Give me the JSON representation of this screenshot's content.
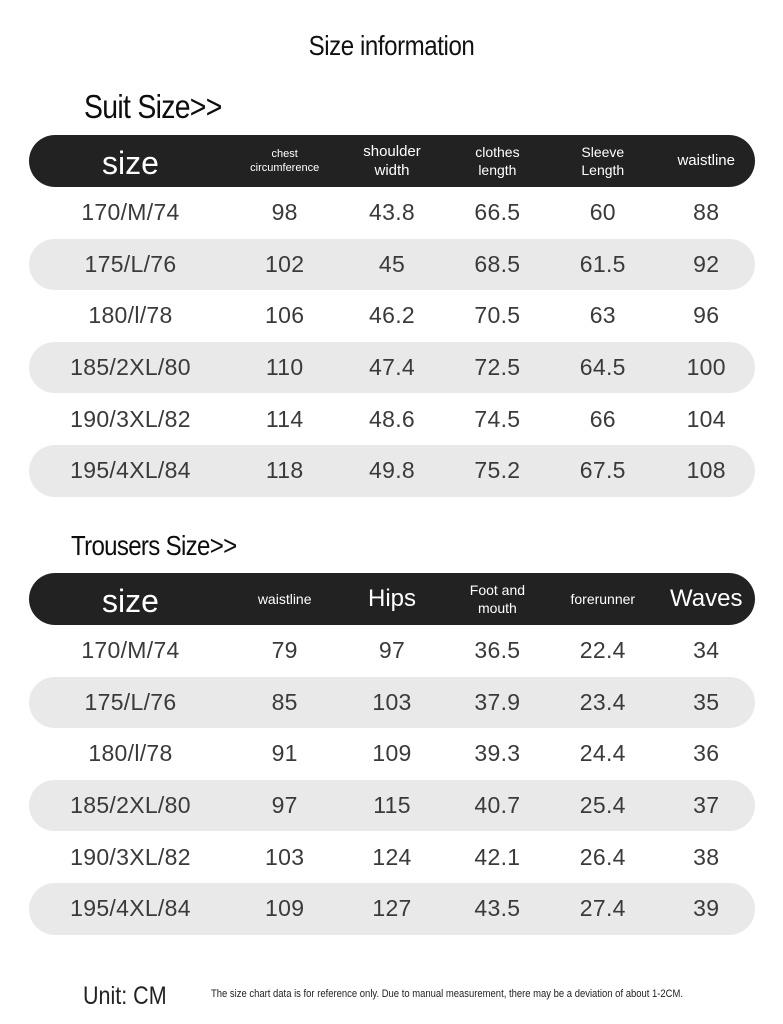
{
  "title": "Size information",
  "suit": {
    "heading": "Suit Size>>",
    "headers": [
      "size",
      "chest\ncircumference",
      "shoulder\nwidth",
      "clothes\nlength",
      "Sleeve\nLength",
      "waistline"
    ],
    "rows": [
      [
        "170/M/74",
        "98",
        "43.8",
        "66.5",
        "60",
        "88"
      ],
      [
        "175/L/76",
        "102",
        "45",
        "68.5",
        "61.5",
        "92"
      ],
      [
        "180/l/78",
        "106",
        "46.2",
        "70.5",
        "63",
        "96"
      ],
      [
        "185/2XL/80",
        "110",
        "47.4",
        "72.5",
        "64.5",
        "100"
      ],
      [
        "190/3XL/82",
        "114",
        "48.6",
        "74.5",
        "66",
        "104"
      ],
      [
        "195/4XL/84",
        "118",
        "49.8",
        "75.2",
        "67.5",
        "108"
      ]
    ]
  },
  "trousers": {
    "heading": "Trousers Size>>",
    "headers": [
      "size",
      "waistline",
      "Hips",
      "Foot and\nmouth",
      "forerunner",
      "Waves"
    ],
    "rows": [
      [
        "170/M/74",
        "79",
        "97",
        "36.5",
        "22.4",
        "34"
      ],
      [
        "175/L/76",
        "85",
        "103",
        "37.9",
        "23.4",
        "35"
      ],
      [
        "180/l/78",
        "91",
        "109",
        "39.3",
        "24.4",
        "36"
      ],
      [
        "185/2XL/80",
        "97",
        "115",
        "40.7",
        "25.4",
        "37"
      ],
      [
        "190/3XL/82",
        "103",
        "124",
        "42.1",
        "26.4",
        "38"
      ],
      [
        "195/4XL/84",
        "109",
        "127",
        "43.5",
        "27.4",
        "39"
      ]
    ]
  },
  "unit": "Unit: CM",
  "note": "The size chart data is for reference only. Due to manual measurement, there may be a deviation of about 1-2CM.",
  "colors": {
    "header_bg": "#222222",
    "row_shade": "#e9e9e9",
    "text": "#3a3a3a"
  }
}
